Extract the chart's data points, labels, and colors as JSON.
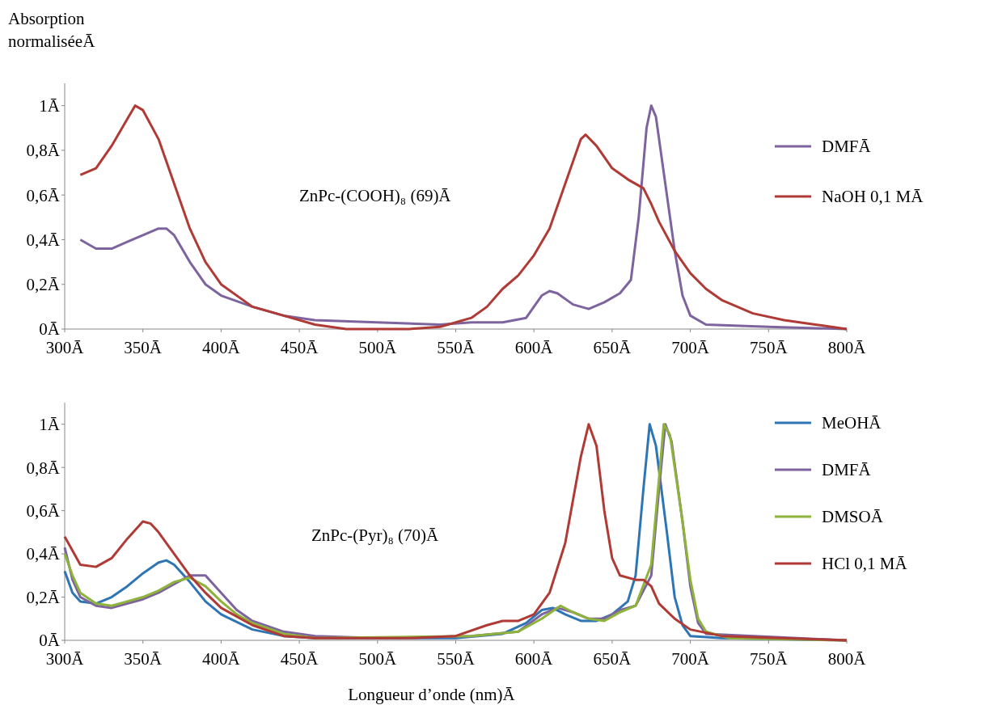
{
  "chart_data": [
    {
      "type": "line",
      "ylabel": "Absorption normaliséeĀ",
      "annotations": [
        "ZnPc-(COOH)₈ (69)Ā"
      ],
      "xlim": [
        300,
        800
      ],
      "ylim": [
        0,
        1.1
      ],
      "xticks": [
        {
          "value": 300,
          "label": "300Ā"
        },
        {
          "value": 350,
          "label": "350Ā"
        },
        {
          "value": 400,
          "label": "400Ā"
        },
        {
          "value": 450,
          "label": "450Ā"
        },
        {
          "value": 500,
          "label": "500Ā"
        },
        {
          "value": 550,
          "label": "550Ā"
        },
        {
          "value": 600,
          "label": "600Ā"
        },
        {
          "value": 650,
          "label": "650Ā"
        },
        {
          "value": 700,
          "label": "700Ā"
        },
        {
          "value": 750,
          "label": "750Ā"
        },
        {
          "value": 800,
          "label": "800Ā"
        }
      ],
      "yticks": [
        {
          "value": 0,
          "label": "0Ā"
        },
        {
          "value": 0.2,
          "label": "0,2Ā"
        },
        {
          "value": 0.4,
          "label": "0,4Ā"
        },
        {
          "value": 0.6,
          "label": "0,6Ā"
        },
        {
          "value": 0.8,
          "label": "0,8Ā"
        },
        {
          "value": 1,
          "label": "1Ā"
        }
      ],
      "legend": "right",
      "grid": false,
      "marker": "none",
      "line_style": "solid",
      "series": [
        {
          "name": "DMFĀ",
          "color": "#7e649e",
          "x": [
            310,
            320,
            330,
            340,
            350,
            360,
            365,
            370,
            380,
            390,
            400,
            420,
            440,
            460,
            500,
            540,
            560,
            580,
            595,
            605,
            610,
            615,
            625,
            635,
            645,
            655,
            662,
            667,
            672,
            675,
            678,
            683,
            690,
            695,
            700,
            710,
            750,
            800
          ],
          "values": [
            0.4,
            0.36,
            0.36,
            0.39,
            0.42,
            0.45,
            0.45,
            0.42,
            0.3,
            0.2,
            0.15,
            0.1,
            0.06,
            0.04,
            0.03,
            0.02,
            0.03,
            0.03,
            0.05,
            0.15,
            0.17,
            0.16,
            0.11,
            0.09,
            0.12,
            0.16,
            0.22,
            0.5,
            0.9,
            1.0,
            0.95,
            0.7,
            0.35,
            0.15,
            0.06,
            0.02,
            0.01,
            0.0
          ]
        },
        {
          "name": "NaOH 0,1 MĀ",
          "color": "#b03a35",
          "x": [
            310,
            320,
            330,
            340,
            345,
            350,
            360,
            370,
            380,
            390,
            400,
            420,
            440,
            460,
            480,
            520,
            540,
            560,
            570,
            580,
            590,
            600,
            610,
            620,
            630,
            633,
            640,
            650,
            660,
            670,
            675,
            680,
            690,
            700,
            710,
            720,
            740,
            760,
            780,
            800
          ],
          "values": [
            0.69,
            0.72,
            0.82,
            0.94,
            1.0,
            0.98,
            0.85,
            0.65,
            0.45,
            0.3,
            0.2,
            0.1,
            0.06,
            0.02,
            0.0,
            0.0,
            0.01,
            0.05,
            0.1,
            0.18,
            0.24,
            0.33,
            0.45,
            0.65,
            0.85,
            0.87,
            0.82,
            0.72,
            0.67,
            0.63,
            0.56,
            0.48,
            0.35,
            0.25,
            0.18,
            0.13,
            0.07,
            0.04,
            0.02,
            0.0
          ]
        }
      ]
    },
    {
      "type": "line",
      "xlabel": "Longueur d’onde (nm)Ā",
      "annotations": [
        "ZnPc-(Pyr)₈ (70)Ā"
      ],
      "xlim": [
        300,
        800
      ],
      "ylim": [
        0,
        1.1
      ],
      "xticks": [
        {
          "value": 300,
          "label": "300Ā"
        },
        {
          "value": 350,
          "label": "350Ā"
        },
        {
          "value": 400,
          "label": "400Ā"
        },
        {
          "value": 450,
          "label": "450Ā"
        },
        {
          "value": 500,
          "label": "500Ā"
        },
        {
          "value": 550,
          "label": "550Ā"
        },
        {
          "value": 600,
          "label": "600Ā"
        },
        {
          "value": 650,
          "label": "650Ā"
        },
        {
          "value": 700,
          "label": "700Ā"
        },
        {
          "value": 750,
          "label": "750Ā"
        },
        {
          "value": 800,
          "label": "800Ā"
        }
      ],
      "yticks": [
        {
          "value": 0,
          "label": "0Ā"
        },
        {
          "value": 0.2,
          "label": "0,2Ā"
        },
        {
          "value": 0.4,
          "label": "0,4Ā"
        },
        {
          "value": 0.6,
          "label": "0,6Ā"
        },
        {
          "value": 0.8,
          "label": "0,8Ā"
        },
        {
          "value": 1,
          "label": "1Ā"
        }
      ],
      "legend": "right",
      "grid": false,
      "marker": "none",
      "line_style": "solid",
      "series": [
        {
          "name": "MeOHĀ",
          "color": "#2e75b6",
          "x": [
            300,
            305,
            310,
            320,
            330,
            340,
            350,
            360,
            365,
            370,
            380,
            390,
            400,
            420,
            440,
            460,
            550,
            580,
            595,
            605,
            612,
            620,
            630,
            640,
            650,
            660,
            665,
            670,
            674,
            678,
            685,
            690,
            695,
            700,
            720,
            800
          ],
          "values": [
            0.32,
            0.22,
            0.18,
            0.17,
            0.2,
            0.25,
            0.31,
            0.36,
            0.37,
            0.35,
            0.27,
            0.18,
            0.12,
            0.05,
            0.02,
            0.01,
            0.01,
            0.03,
            0.08,
            0.14,
            0.15,
            0.12,
            0.09,
            0.09,
            0.12,
            0.18,
            0.3,
            0.7,
            1.0,
            0.9,
            0.5,
            0.2,
            0.07,
            0.02,
            0.01,
            0.0
          ]
        },
        {
          "name": "DMFĀ",
          "color": "#7e649e",
          "x": [
            300,
            305,
            310,
            320,
            330,
            340,
            350,
            360,
            370,
            380,
            390,
            400,
            410,
            420,
            440,
            460,
            500,
            560,
            590,
            605,
            615,
            625,
            635,
            645,
            655,
            665,
            675,
            680,
            684,
            688,
            695,
            700,
            705,
            710,
            730,
            800
          ],
          "values": [
            0.43,
            0.28,
            0.2,
            0.16,
            0.15,
            0.17,
            0.19,
            0.22,
            0.26,
            0.3,
            0.3,
            0.22,
            0.14,
            0.09,
            0.04,
            0.02,
            0.01,
            0.02,
            0.04,
            0.12,
            0.15,
            0.13,
            0.1,
            0.1,
            0.14,
            0.16,
            0.3,
            0.7,
            1.0,
            0.92,
            0.55,
            0.25,
            0.08,
            0.03,
            null,
            0.0
          ]
        },
        {
          "name": "DMSOĀ",
          "color": "#8db33b",
          "x": [
            300,
            305,
            310,
            320,
            330,
            340,
            350,
            360,
            370,
            380,
            390,
            400,
            410,
            420,
            440,
            460,
            560,
            590,
            605,
            617,
            625,
            635,
            645,
            655,
            665,
            675,
            680,
            683,
            687,
            695,
            700,
            705,
            710,
            725,
            800
          ],
          "values": [
            0.4,
            0.3,
            0.22,
            0.17,
            0.16,
            0.18,
            0.2,
            0.23,
            0.27,
            0.29,
            0.25,
            0.18,
            0.12,
            0.08,
            0.03,
            0.01,
            0.02,
            0.04,
            0.1,
            0.16,
            0.13,
            0.1,
            0.09,
            0.13,
            0.16,
            0.35,
            0.75,
            1.0,
            0.95,
            0.55,
            0.28,
            0.1,
            0.04,
            0.01,
            0.0
          ]
        },
        {
          "name": "HCl 0,1 MĀ",
          "color": "#b03a35",
          "x": [
            300,
            310,
            320,
            330,
            340,
            350,
            355,
            360,
            370,
            380,
            390,
            400,
            420,
            440,
            460,
            520,
            550,
            570,
            580,
            590,
            600,
            610,
            620,
            630,
            635,
            640,
            645,
            650,
            655,
            665,
            670,
            675,
            680,
            690,
            700,
            720,
            800
          ],
          "values": [
            0.48,
            0.35,
            0.34,
            0.38,
            0.47,
            0.55,
            0.54,
            0.5,
            0.4,
            0.3,
            0.22,
            0.15,
            0.07,
            0.02,
            0.01,
            0.01,
            0.02,
            0.07,
            0.09,
            0.09,
            0.12,
            0.22,
            0.45,
            0.85,
            1.0,
            0.9,
            0.6,
            0.38,
            0.3,
            0.28,
            0.28,
            0.25,
            0.17,
            0.1,
            0.05,
            0.02,
            0.0
          ]
        }
      ]
    }
  ]
}
